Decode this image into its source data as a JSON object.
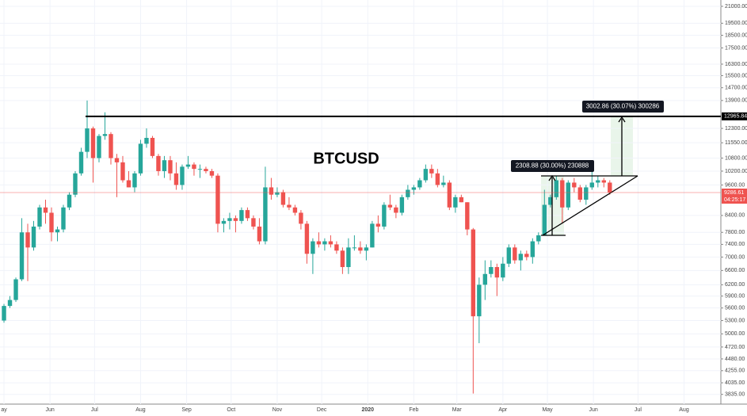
{
  "chart_data": {
    "type": "candlestick",
    "title": "BTCUSD",
    "log_scale": true,
    "grid": true,
    "up_color": "#26a69a",
    "down_color": "#ef5350",
    "open": [
      5300,
      5650,
      5800,
      6350,
      7800,
      7300,
      8000,
      8700,
      8500,
      7800,
      7900,
      8700,
      9200,
      10100,
      11100,
      12300,
      10800,
      11900,
      12000,
      10800,
      10600,
      9800,
      9500,
      10100,
      11500,
      11800,
      10900,
      10200,
      10700,
      10100,
      9600,
      10400,
      10500,
      10300,
      10300,
      10200,
      10000,
      8100,
      8200,
      8300,
      8200,
      8600,
      8300,
      8000,
      7500,
      9500,
      9200,
      9300,
      8800,
      8700,
      8500,
      8100,
      7100,
      7500,
      7400,
      7500,
      7400,
      7200,
      6700,
      7300,
      7300,
      7200,
      7300,
      8100,
      8000,
      8800,
      8700,
      8500,
      9100,
      9400,
      9500,
      9800,
      10300,
      10100,
      9600,
      9700,
      8700,
      9100,
      8900,
      7900,
      5400,
      6200,
      6500,
      6700,
      6400,
      6800,
      7300,
      6900,
      7100,
      7000,
      7500,
      7700,
      8800,
      9100,
      9800,
      8700,
      9700,
      9500,
      9000,
      9500,
      9700,
      9800,
      9700
    ],
    "high": [
      5700,
      5900,
      6400,
      8300,
      8100,
      8200,
      8800,
      9000,
      8700,
      8000,
      8800,
      9300,
      10200,
      11300,
      13900,
      12400,
      12000,
      13200,
      12100,
      11000,
      10900,
      10200,
      10200,
      11700,
      12300,
      11900,
      11000,
      10900,
      10900,
      10600,
      10500,
      10900,
      10600,
      10500,
      10400,
      10300,
      10100,
      8300,
      8500,
      8400,
      8700,
      8700,
      8400,
      8300,
      10400,
      9900,
      9500,
      9400,
      9100,
      8800,
      8600,
      8200,
      7600,
      7800,
      7600,
      7700,
      7500,
      7300,
      7600,
      7700,
      7500,
      7400,
      8200,
      8400,
      8900,
      9200,
      8800,
      9200,
      9600,
      9600,
      9900,
      10500,
      10500,
      10300,
      10000,
      9800,
      9200,
      9200,
      8900,
      7950,
      6400,
      6900,
      6900,
      6800,
      7000,
      7400,
      7400,
      7200,
      7200,
      7600,
      7800,
      9400,
      9200,
      10000,
      9900,
      9800,
      9900,
      9600,
      9600,
      10400,
      10000,
      9900,
      9800
    ],
    "low": [
      5250,
      5600,
      5750,
      6300,
      6300,
      7200,
      7900,
      8100,
      7500,
      7500,
      7800,
      8600,
      9100,
      10000,
      10800,
      9700,
      10600,
      11700,
      10500,
      9100,
      9700,
      9500,
      9300,
      10000,
      11300,
      10800,
      10000,
      9900,
      9800,
      9400,
      9400,
      10300,
      10000,
      9900,
      10100,
      9900,
      7800,
      7800,
      7900,
      7800,
      8100,
      8200,
      7900,
      7400,
      7400,
      9000,
      9100,
      8700,
      8600,
      8400,
      7900,
      6800,
      6500,
      7300,
      7200,
      7300,
      7100,
      6500,
      6500,
      7200,
      7100,
      6900,
      7300,
      7800,
      7900,
      8600,
      8300,
      8400,
      9000,
      9200,
      9400,
      9700,
      9900,
      9500,
      9500,
      8600,
      8500,
      8900,
      7700,
      3850,
      4800,
      5800,
      6400,
      5900,
      6300,
      6700,
      6800,
      6600,
      6900,
      6800,
      7400,
      7700,
      8700,
      9000,
      8100,
      8600,
      9300,
      8900,
      8800,
      9400,
      9500,
      9500,
      9200
    ],
    "close": [
      5650,
      5800,
      6350,
      7800,
      7300,
      8000,
      8700,
      8500,
      7800,
      7900,
      8700,
      9200,
      10100,
      11100,
      12300,
      10800,
      11900,
      12000,
      10800,
      10600,
      9800,
      9500,
      10100,
      11500,
      11800,
      10900,
      10200,
      10700,
      10100,
      9600,
      10400,
      10500,
      10300,
      10300,
      10200,
      10000,
      8100,
      8200,
      8300,
      8200,
      8600,
      8300,
      8000,
      7500,
      9500,
      9200,
      9300,
      8800,
      8700,
      8500,
      8100,
      7100,
      7500,
      7400,
      7500,
      7400,
      7200,
      6700,
      7300,
      7300,
      7200,
      7300,
      8100,
      8000,
      8800,
      8700,
      8500,
      9100,
      9400,
      9500,
      9800,
      10300,
      10100,
      9600,
      9700,
      8700,
      9100,
      8900,
      7900,
      5400,
      6200,
      6500,
      6700,
      6400,
      6800,
      7300,
      6900,
      7100,
      7000,
      7500,
      7700,
      8800,
      9100,
      9800,
      8700,
      9700,
      9500,
      9000,
      9500,
      9700,
      9800,
      9700,
      9286.61
    ],
    "xlim": [
      -0.67,
      120.7
    ],
    "xticks": [
      {
        "value": 0,
        "label": "ay"
      },
      {
        "value": 7.75,
        "label": "Jun"
      },
      {
        "value": 15.25,
        "label": "Jul"
      },
      {
        "value": 23,
        "label": "Aug"
      },
      {
        "value": 30.75,
        "label": "Sep"
      },
      {
        "value": 38.25,
        "label": "Oct"
      },
      {
        "value": 46,
        "label": "Nov"
      },
      {
        "value": 53.5,
        "label": "Dec"
      },
      {
        "value": 61.25,
        "label": "2020"
      },
      {
        "value": 69,
        "label": "Feb"
      },
      {
        "value": 76.25,
        "label": "Mar"
      },
      {
        "value": 84,
        "label": "Apr"
      },
      {
        "value": 91.5,
        "label": "May"
      },
      {
        "value": 99.25,
        "label": "Jun"
      },
      {
        "value": 106.75,
        "label": "Jul"
      },
      {
        "value": 114.5,
        "label": "Aug"
      }
    ],
    "ylim": [
      3675,
      21590
    ],
    "yticks": [
      {
        "value": 21000,
        "label": "21000.00"
      },
      {
        "value": 19500,
        "label": "19500.00"
      },
      {
        "value": 18500,
        "label": "18500.00"
      },
      {
        "value": 17500,
        "label": "17500.00"
      },
      {
        "value": 16300,
        "label": "16300.00"
      },
      {
        "value": 15500,
        "label": "15500.00"
      },
      {
        "value": 14700,
        "label": "14700.00"
      },
      {
        "value": 13900,
        "label": "13900.00"
      },
      {
        "value": 12300,
        "label": "12300.00"
      },
      {
        "value": 11550,
        "label": "11550.00"
      },
      {
        "value": 10800,
        "label": "10800.00"
      },
      {
        "value": 10200,
        "label": "10200.00"
      },
      {
        "value": 9600,
        "label": "9600.00"
      },
      {
        "value": 8400,
        "label": "8400.00"
      },
      {
        "value": 7800,
        "label": "7800.00"
      },
      {
        "value": 7400,
        "label": "7400.00"
      },
      {
        "value": 7000,
        "label": "7000.00"
      },
      {
        "value": 6600,
        "label": "6600.00"
      },
      {
        "value": 6200,
        "label": "6200.00"
      },
      {
        "value": 5900,
        "label": "5900.00"
      },
      {
        "value": 5600,
        "label": "5600.00"
      },
      {
        "value": 5300,
        "label": "5300.00"
      },
      {
        "value": 5000,
        "label": "5000.00"
      },
      {
        "value": 4720,
        "label": "4720.00"
      },
      {
        "value": 4480,
        "label": "4480.00"
      },
      {
        "value": 4255,
        "label": "4255.00"
      },
      {
        "value": 4035,
        "label": "4035.00"
      },
      {
        "value": 3835,
        "label": "3835.00"
      }
    ],
    "level": {
      "value": 12965.84,
      "label": "12965.84"
    },
    "last_price": {
      "value": 9286.61,
      "label": "9286.61"
    },
    "countdown": "04:25:17",
    "annotations": [
      "2308.88 (30.00%) 230888",
      "3002.86 (30.07%) 300286"
    ]
  }
}
